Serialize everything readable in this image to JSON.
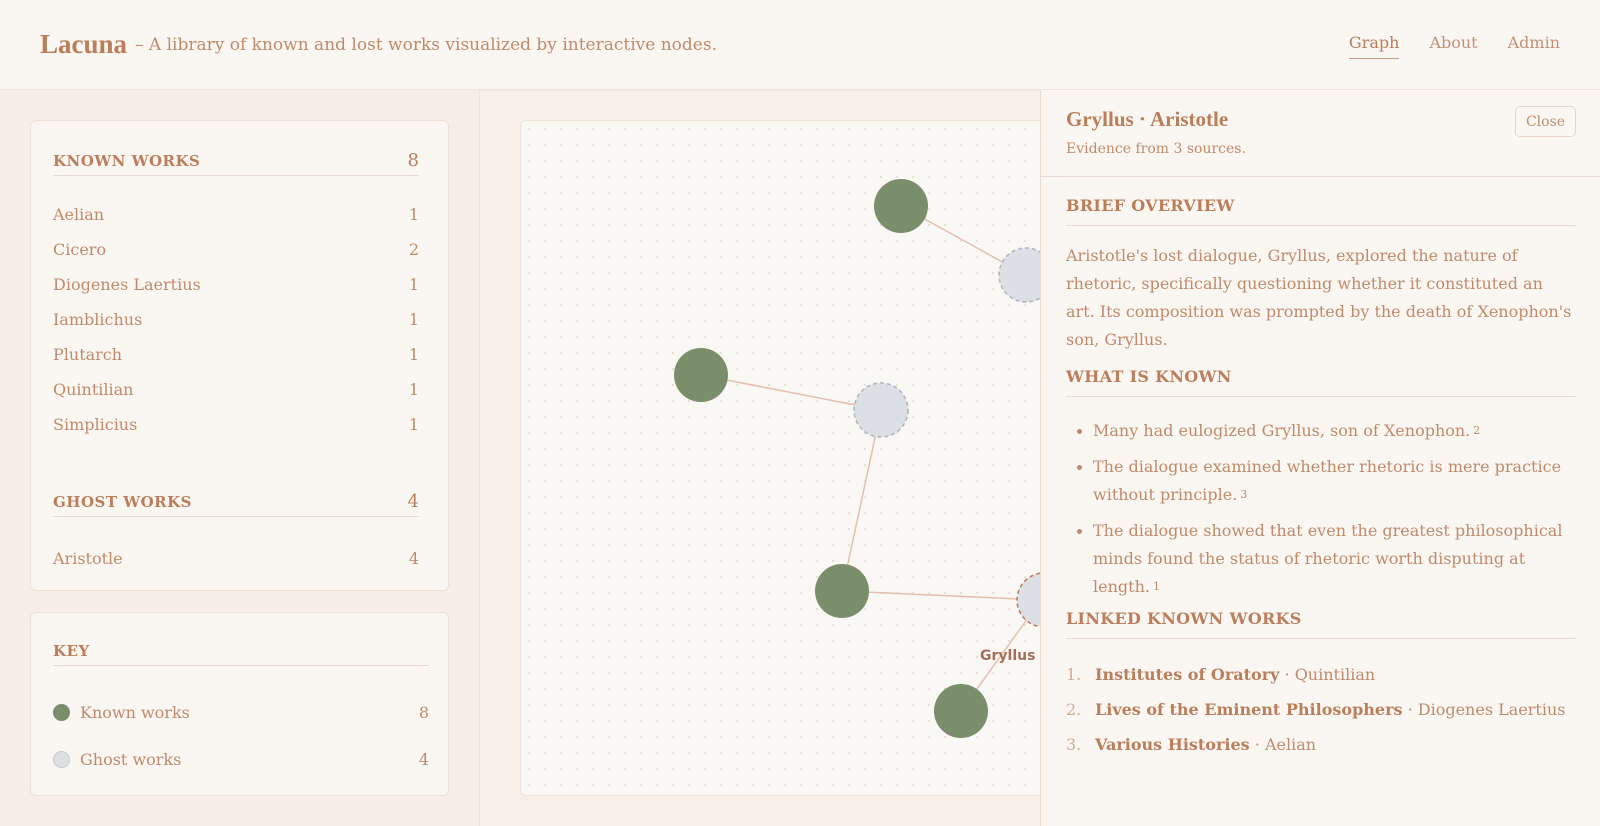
{
  "header": {
    "brand": "Lacuna",
    "tagline": "– A library of known and lost works visualized by interactive nodes.",
    "nav": [
      "Graph",
      "About",
      "Admin"
    ]
  },
  "known_works": {
    "title": "KNOWN WORKS",
    "count": "8",
    "items": [
      {
        "name": "Aelian",
        "count": "1"
      },
      {
        "name": "Cicero",
        "count": "2"
      },
      {
        "name": "Diogenes Laertius",
        "count": "1"
      },
      {
        "name": "Iamblichus",
        "count": "1"
      },
      {
        "name": "Plutarch",
        "count": "1"
      },
      {
        "name": "Quintilian",
        "count": "1"
      },
      {
        "name": "Simplicius",
        "count": "1"
      }
    ]
  },
  "ghost_works": {
    "title": "GHOST WORKS",
    "count": "4",
    "items": [
      {
        "name": "Aristotle",
        "count": "4"
      }
    ]
  },
  "key": {
    "title": "KEY",
    "known_label": "Known works",
    "known_count": "8",
    "ghost_label": "Ghost works",
    "ghost_count": "4"
  },
  "graph": {
    "node_label": "Gryllus ·",
    "colors": {
      "known": "#7b8e6c",
      "ghost": "#dcdfe3",
      "edge": "#e3bfae"
    }
  },
  "panel": {
    "title": "Gryllus · Aristotle",
    "subtitle": "Evidence from 3 sources.",
    "close_label": "Close",
    "overview_title": "BRIEF OVERVIEW",
    "overview": "Aristotle's lost dialogue, Gryllus, explored the nature of rhetoric, specifically questioning whether it constituted an art. Its composition was prompted by the death of Xenophon's son, Gryllus.",
    "known_title": "WHAT IS KNOWN",
    "known_points": [
      {
        "text": "Many had eulogized Gryllus, son of Xenophon.",
        "ref": "2"
      },
      {
        "text": "The dialogue examined whether rhetoric is mere practice without principle.",
        "ref": "3"
      },
      {
        "text": "The dialogue showed that even the greatest philosophical minds found the status of rhetoric worth disputing at length.",
        "ref": "1"
      }
    ],
    "linked_title": "LINKED KNOWN WORKS",
    "linked": [
      {
        "num": "1.",
        "title": "Institutes of Oratory",
        "author": "· Quintilian"
      },
      {
        "num": "2.",
        "title": "Lives of the Eminent Philosophers",
        "author": "· Diogenes Laertius"
      },
      {
        "num": "3.",
        "title": "Various Histories",
        "author": "· Aelian"
      }
    ]
  }
}
